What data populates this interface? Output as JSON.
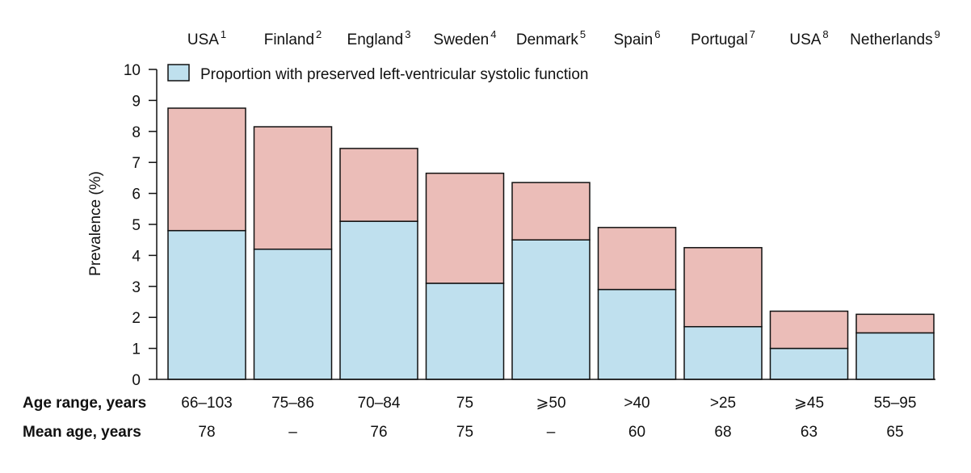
{
  "chart_data": {
    "type": "bar",
    "stacked": true,
    "ylabel": "Prevalence (%)",
    "ylim": [
      0,
      10
    ],
    "yticks": [
      "0",
      "1",
      "2",
      "3",
      "4",
      "5",
      "6",
      "7",
      "8",
      "9",
      "10"
    ],
    "grid": false,
    "legend_position": "top-left",
    "categories": [
      {
        "name": "USA",
        "sup": "1"
      },
      {
        "name": "Finland",
        "sup": "2"
      },
      {
        "name": "England",
        "sup": "3"
      },
      {
        "name": "Sweden",
        "sup": "4"
      },
      {
        "name": "Denmark",
        "sup": "5"
      },
      {
        "name": "Spain",
        "sup": "6"
      },
      {
        "name": "Portugal",
        "sup": "7"
      },
      {
        "name": "USA",
        "sup": "8"
      },
      {
        "name": "Netherlands",
        "sup": "9"
      }
    ],
    "series": [
      {
        "name": "Proportion with preserved left-ventricular systolic function",
        "color": "#bfe0ee",
        "values": [
          4.8,
          4.2,
          5.1,
          3.1,
          4.5,
          2.9,
          1.7,
          1.0,
          1.5
        ]
      },
      {
        "name": "",
        "color": "#ebbdb8",
        "values": [
          3.95,
          3.95,
          2.35,
          3.55,
          1.85,
          2.0,
          2.55,
          1.2,
          0.6
        ]
      }
    ],
    "totals": [
      8.75,
      8.15,
      7.45,
      6.65,
      6.35,
      4.9,
      4.25,
      2.2,
      2.1
    ],
    "rows": [
      {
        "header": "Age range, years",
        "values": [
          "66–103",
          "75–86",
          "70–84",
          "75",
          "⩾50",
          ">40",
          ">25",
          "⩾45",
          "55–95"
        ]
      },
      {
        "header": "Mean age, years",
        "values": [
          "78",
          "–",
          "76",
          "75",
          "–",
          "60",
          "68",
          "63",
          "65"
        ]
      }
    ]
  }
}
